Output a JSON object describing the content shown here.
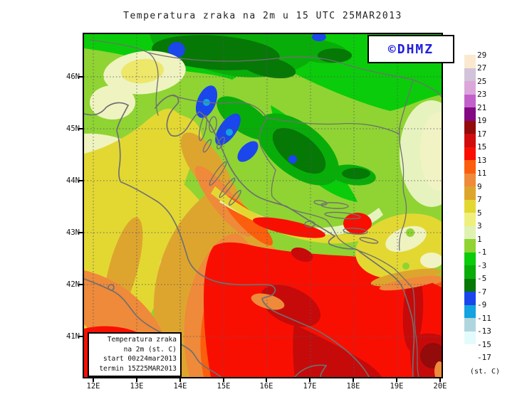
{
  "title": "Temperatura zraka na 2m u 15 UTC 25MAR2013",
  "watermark": {
    "text": "©DHMZ",
    "color": "#2020DD"
  },
  "inset_legend": {
    "lines": [
      "Temperatura zraka",
      "na 2m (st. C)",
      "start 00z24mar2013",
      "termin 15Z25MAR2013"
    ]
  },
  "colorbar": {
    "unit": "(st. C)",
    "tick_labels": [
      "29",
      "27",
      "25",
      "23",
      "21",
      "19",
      "17",
      "15",
      "13",
      "11",
      "9",
      "7",
      "5",
      "3",
      "1",
      "-1",
      "-3",
      "-5",
      "-7",
      "-9",
      "-11",
      "-13",
      "-15",
      "-17"
    ],
    "swatch_colors": [
      "#FBE9CF",
      "#D2C3DB",
      "#DBA7DB",
      "#C361CB",
      "#830983",
      "#930B0B",
      "#D10C0C",
      "#F90F02",
      "#FB5E0C",
      "#EE8A3A",
      "#DEA52E",
      "#E3D832",
      "#EFEF7E",
      "#DFF2B2",
      "#8FD433",
      "#0ACC0A",
      "#09AD09",
      "#067806",
      "#1A46EC",
      "#12A3E0",
      "#AFD6DE",
      "#E4FBFC",
      "#FFFFFF"
    ]
  },
  "axes": {
    "lat_labels": [
      "46N",
      "45N",
      "44N",
      "43N",
      "42N",
      "41N"
    ],
    "lon_labels": [
      "12E",
      "13E",
      "14E",
      "15E",
      "16E",
      "17E",
      "18E",
      "19E",
      "20E"
    ]
  },
  "chart_data": {
    "type": "heatmap",
    "title": "Temperatura zraka na 2m u 15 UTC 25MAR2013",
    "unit": "st. C",
    "scale_values": [
      29,
      27,
      25,
      23,
      21,
      19,
      17,
      15,
      13,
      11,
      9,
      7,
      5,
      3,
      1,
      -1,
      -3,
      -5,
      -7,
      -9,
      -11,
      -13,
      -15,
      -17
    ],
    "x_range": [
      "12E",
      "20E"
    ],
    "y_range": [
      "41N",
      "46N"
    ],
    "grid": true,
    "legend_position": "right"
  }
}
